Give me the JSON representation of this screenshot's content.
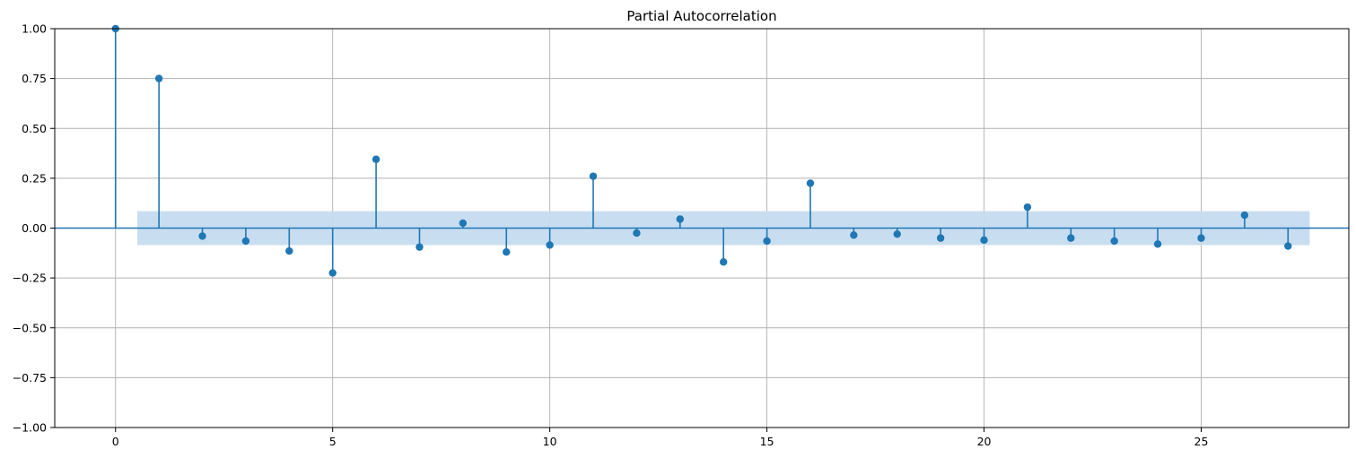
{
  "chart_data": {
    "type": "stem",
    "title": "Partial Autocorrelation",
    "xlabel": "",
    "ylabel": "",
    "xlim": [
      -1.4,
      28.4
    ],
    "ylim": [
      -1.0,
      1.0
    ],
    "xticks": [
      0,
      5,
      10,
      15,
      20,
      25
    ],
    "yticks": [
      -1.0,
      -0.75,
      -0.5,
      -0.25,
      0.0,
      0.25,
      0.5,
      0.75,
      1.0
    ],
    "xtick_labels": [
      "0",
      "5",
      "10",
      "15",
      "20",
      "25"
    ],
    "ytick_labels": [
      "−1.00",
      "−0.75",
      "−0.50",
      "−0.25",
      "0.00",
      "0.25",
      "0.50",
      "0.75",
      "1.00"
    ],
    "grid": true,
    "lags": [
      0,
      1,
      2,
      3,
      4,
      5,
      6,
      7,
      8,
      9,
      10,
      11,
      12,
      13,
      14,
      15,
      16,
      17,
      18,
      19,
      20,
      21,
      22,
      23,
      24,
      25,
      26,
      27
    ],
    "values": [
      1.0,
      0.75,
      -0.04,
      -0.065,
      -0.115,
      -0.225,
      0.345,
      -0.095,
      0.025,
      -0.12,
      -0.085,
      0.26,
      -0.025,
      0.045,
      -0.17,
      -0.065,
      0.225,
      -0.035,
      -0.03,
      -0.05,
      -0.06,
      0.105,
      -0.05,
      -0.065,
      -0.08,
      -0.05,
      0.065,
      -0.09
    ],
    "confidence_band": {
      "x_start": 0.5,
      "x_end": 27.5,
      "lower": -0.085,
      "upper": 0.085
    },
    "colors": {
      "stem": "#1f77b4",
      "band": "#c6dbef",
      "grid": "#b0b0b0",
      "axis": "#000000"
    }
  }
}
